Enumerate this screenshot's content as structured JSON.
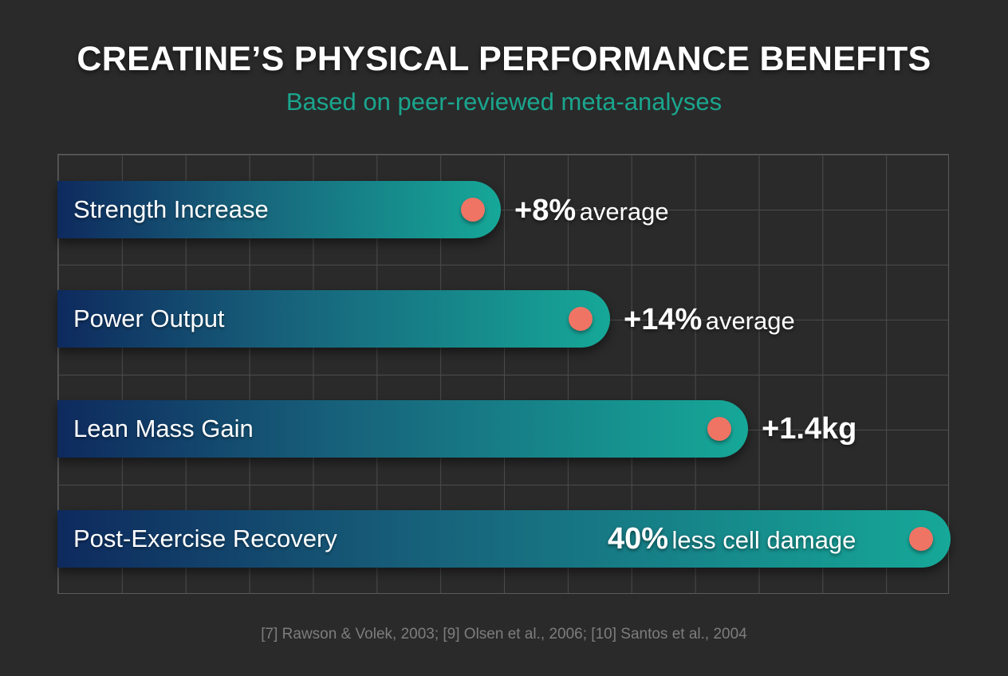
{
  "chart_data": {
    "type": "bar",
    "title": "CREATINE’S PHYSICAL PERFORMANCE BENEFITS",
    "subtitle": "Based on peer-reviewed meta-analyses",
    "orientation": "horizontal",
    "grid": true,
    "categories": [
      "Strength Increase",
      "Power Output",
      "Lean Mass Gain",
      "Post-Exercise Recovery"
    ],
    "values": [
      8,
      14,
      1.4,
      40
    ],
    "value_labels": [
      {
        "value": "+8%",
        "suffix": "average"
      },
      {
        "value": "+14%",
        "suffix": "average"
      },
      {
        "value": "+1.4kg",
        "suffix": ""
      },
      {
        "value": "40%",
        "suffix": "less cell damage"
      }
    ],
    "colors": {
      "bar_start": "#0e2a5e",
      "bar_end": "#16a898",
      "marker": "#f07464",
      "subtitle": "#1aa68e"
    },
    "source": "[7] Rawson & Volek, 2003; [9] Olsen et al., 2006; [10] Santos et al., 2004"
  }
}
